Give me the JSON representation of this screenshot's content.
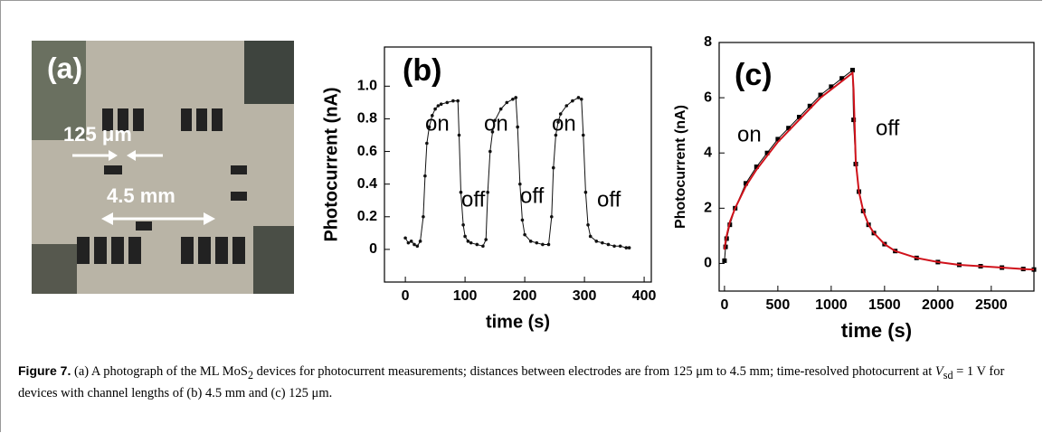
{
  "photo": {
    "label": "(a)",
    "dim1": "125 μm",
    "dim2": "4.5 mm"
  },
  "chart_data": [
    {
      "type": "line",
      "ylabel": "Photocurrent (nA)",
      "xlabel": "time (s)",
      "annotations": [
        "(b)",
        "on",
        "off",
        "on",
        "off",
        "on",
        "off"
      ],
      "x": [
        0,
        5,
        10,
        15,
        20,
        25,
        30,
        33,
        36,
        40,
        45,
        50,
        55,
        60,
        70,
        80,
        88,
        90,
        93,
        97,
        100,
        105,
        110,
        120,
        130,
        135,
        138,
        142,
        146,
        150,
        160,
        170,
        180,
        185,
        188,
        192,
        196,
        200,
        210,
        220,
        230,
        240,
        245,
        248,
        252,
        256,
        260,
        270,
        280,
        290,
        295,
        298,
        302,
        306,
        310,
        320,
        330,
        340,
        350,
        360,
        370,
        375
      ],
      "series": [
        {
          "color": "#111111",
          "values": [
            0.07,
            0.04,
            0.05,
            0.03,
            0.02,
            0.05,
            0.2,
            0.45,
            0.65,
            0.75,
            0.82,
            0.86,
            0.88,
            0.89,
            0.9,
            0.91,
            0.91,
            0.7,
            0.35,
            0.15,
            0.08,
            0.05,
            0.04,
            0.03,
            0.02,
            0.06,
            0.35,
            0.6,
            0.72,
            0.79,
            0.86,
            0.9,
            0.92,
            0.93,
            0.75,
            0.4,
            0.18,
            0.09,
            0.05,
            0.04,
            0.03,
            0.03,
            0.2,
            0.5,
            0.7,
            0.78,
            0.83,
            0.88,
            0.91,
            0.93,
            0.92,
            0.7,
            0.35,
            0.15,
            0.08,
            0.05,
            0.04,
            0.03,
            0.02,
            0.02,
            0.01,
            0.01
          ]
        }
      ],
      "xlim": [
        -35,
        412
      ],
      "ylim": [
        -0.2,
        1.24
      ],
      "xticks": [
        0,
        100,
        200,
        300,
        400
      ],
      "yticks": [
        0,
        0.2,
        0.4,
        0.6,
        0.8,
        {
          "value": 1,
          "label": "1.0"
        }
      ]
    },
    {
      "type": "line",
      "ylabel": "Photocurrent (nA)",
      "xlabel": "time (s)",
      "annotations": [
        "(c)",
        "on",
        "off"
      ],
      "x": [
        0,
        10,
        20,
        50,
        100,
        200,
        300,
        400,
        500,
        600,
        700,
        800,
        900,
        1000,
        1100,
        1200,
        1210,
        1230,
        1260,
        1300,
        1350,
        1400,
        1500,
        1600,
        1800,
        2000,
        2200,
        2400,
        2600,
        2800,
        2900
      ],
      "series": [
        {
          "color": "#000000",
          "values": [
            0.1,
            0.6,
            0.9,
            1.4,
            2.0,
            2.9,
            3.5,
            4.0,
            4.5,
            4.9,
            5.3,
            5.7,
            6.1,
            6.4,
            6.7,
            7.0,
            5.2,
            3.6,
            2.6,
            1.9,
            1.4,
            1.1,
            0.7,
            0.45,
            0.2,
            0.05,
            -0.05,
            -0.1,
            -0.15,
            -0.2,
            -0.22
          ]
        },
        {
          "color": "#d0121b",
          "values": [
            0.5,
            0.8,
            1.0,
            1.5,
            2.0,
            2.8,
            3.4,
            3.9,
            4.4,
            4.8,
            5.2,
            5.6,
            6.0,
            6.3,
            6.6,
            6.9,
            6.3,
            3.7,
            2.6,
            1.9,
            1.4,
            1.1,
            0.7,
            0.45,
            0.2,
            0.05,
            -0.05,
            -0.1,
            -0.15,
            -0.2,
            -0.22
          ]
        }
      ],
      "xlim": [
        -50,
        2900
      ],
      "ylim": [
        -1,
        8
      ],
      "xticks": [
        0,
        500,
        1000,
        1500,
        2000,
        2500
      ],
      "yticks": [
        0,
        2,
        4,
        6,
        8
      ]
    }
  ],
  "caption": {
    "label": "Figure 7.",
    "text1": " (a) A photograph of the ML MoS",
    "sub1": "2",
    "text2": " devices for photocurrent measurements; distances between electrodes are from 125 μm to 4.5 mm; time-resolved photocurrent at ",
    "var": "V",
    "sub2": "sd",
    "text3": " = 1 V for devices with channel lengths of (b) 4.5 mm and (c) 125 μm."
  }
}
